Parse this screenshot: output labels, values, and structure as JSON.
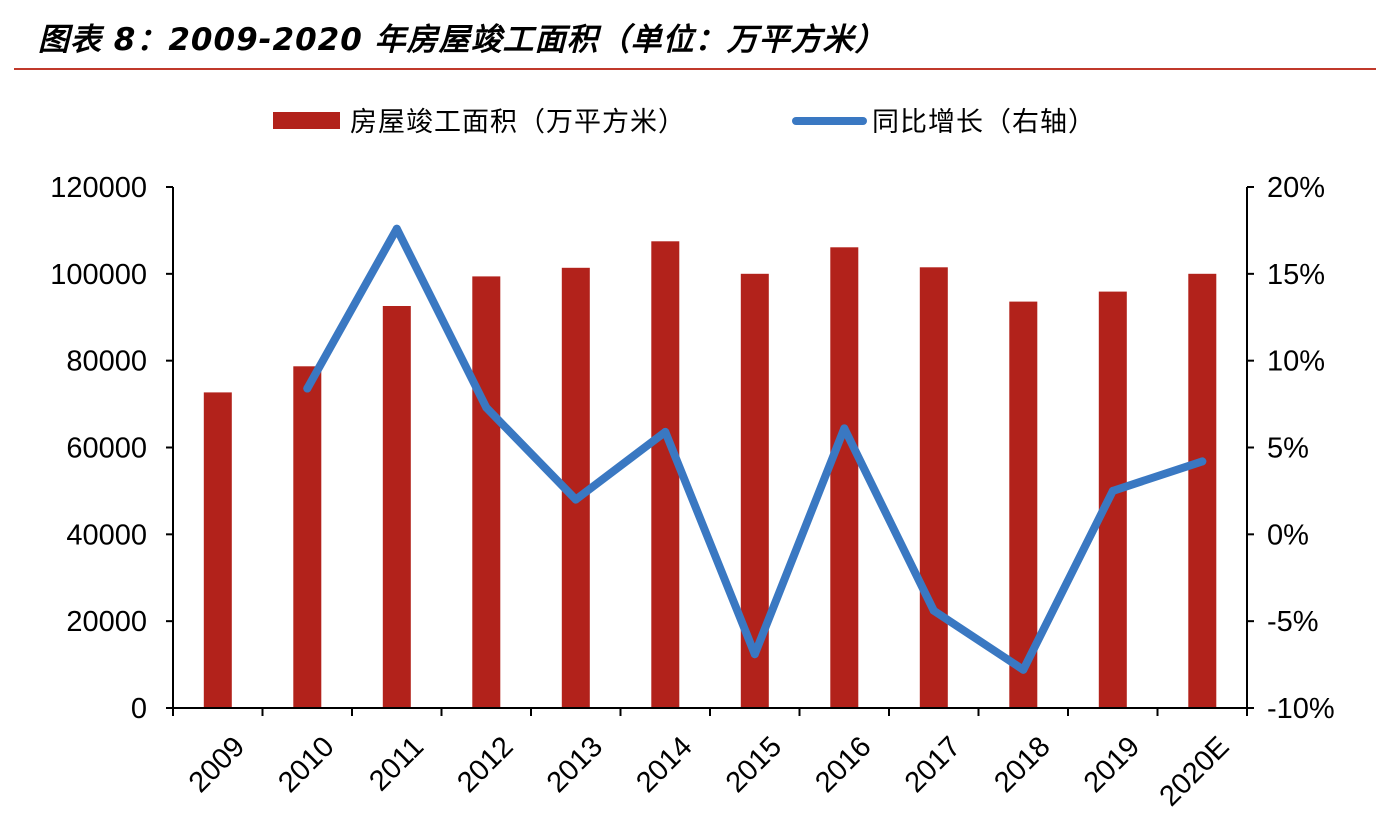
{
  "header": {
    "title": "图表 8：2009-2020 年房屋竣工面积（单位：万平方米）"
  },
  "colors": {
    "bar": "#b2221b",
    "line": "#3a78c2",
    "rule": "#c0392b",
    "axis": "#000000"
  },
  "chart_data": {
    "type": "bar",
    "categories": [
      "2009",
      "2010",
      "2011",
      "2012",
      "2013",
      "2014",
      "2015",
      "2016",
      "2017",
      "2018",
      "2019",
      "2020E"
    ],
    "series": [
      {
        "name": "房屋竣工面积（万平方米）",
        "type": "bar",
        "axis": "left",
        "values": [
          72700,
          78700,
          92600,
          99400,
          101400,
          107500,
          100000,
          106100,
          101500,
          93600,
          95900,
          100000
        ]
      },
      {
        "name": "同比增长（右轴）",
        "type": "line",
        "axis": "right",
        "values": [
          null,
          0.084,
          0.176,
          0.073,
          0.02,
          0.059,
          -0.069,
          0.061,
          -0.044,
          -0.078,
          0.025,
          0.042
        ]
      }
    ],
    "left_axis": {
      "min": 0,
      "max": 120000,
      "step": 20000,
      "tick_labels": [
        "0",
        "20000",
        "40000",
        "60000",
        "80000",
        "100000",
        "120000"
      ]
    },
    "right_axis": {
      "min": -0.1,
      "max": 0.2,
      "step": 0.05,
      "tick_labels": [
        "-10%",
        "-5%",
        "0%",
        "5%",
        "10%",
        "15%",
        "20%"
      ]
    },
    "grid": false,
    "legend_position": "top-center"
  }
}
